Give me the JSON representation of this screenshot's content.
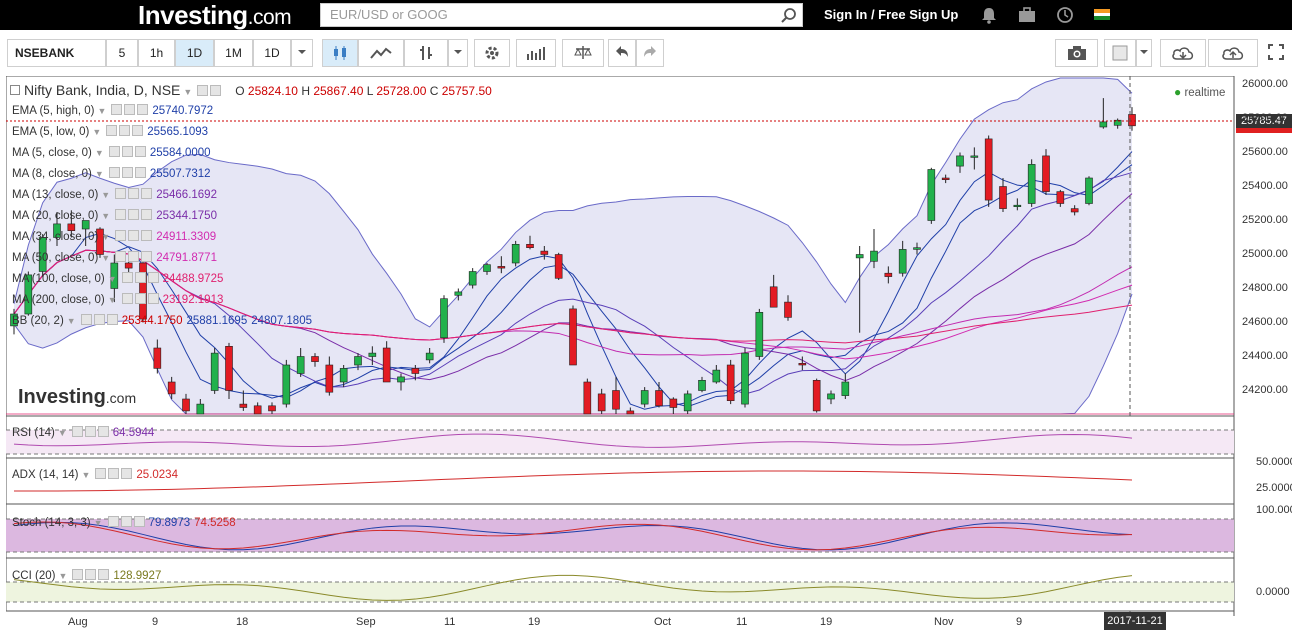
{
  "header": {
    "logo": "Investing",
    "logo_suffix": ".com",
    "search_placeholder": "EUR/USD or GOOG",
    "signin": "Sign In / Free Sign Up"
  },
  "toolbar": {
    "symbol": "NSEBANK",
    "intervals": [
      "5",
      "1h",
      "1D",
      "1M"
    ],
    "active_interval": "1D",
    "range": "1D"
  },
  "chart": {
    "title": "Nifty Bank, India, D, NSE",
    "ohlc": {
      "o_label": "O",
      "o": "25824.10",
      "h_label": "H",
      "h": "25867.40",
      "l_label": "L",
      "l": "25728.00",
      "c_label": "C",
      "c": "25757.50"
    },
    "realtime": "realtime",
    "price_tag": "25785.47",
    "date_tag": "2017-11-21",
    "watermark": "Investing",
    "watermark_suffix": ".com",
    "colors": {
      "up": "#22b14c",
      "down": "#e31b23",
      "bb_fill": "#e6e6f5",
      "bb_line": "#6a6ac8"
    }
  },
  "indicators": [
    {
      "label": "EMA (5, high, 0)",
      "value": "25740.7972",
      "color": "#1f3fa8"
    },
    {
      "label": "EMA (5, low, 0)",
      "value": "25565.1093",
      "color": "#1f3fa8"
    },
    {
      "label": "MA (5, close, 0)",
      "value": "25584.0000",
      "color": "#1f3fa8"
    },
    {
      "label": "MA (8, close, 0)",
      "value": "25507.7312",
      "color": "#1f3fa8"
    },
    {
      "label": "MA (13, close, 0)",
      "value": "25466.1692",
      "color": "#7a2da8"
    },
    {
      "label": "MA (20, close, 0)",
      "value": "25344.1750",
      "color": "#7a2da8"
    },
    {
      "label": "MA (34, close, 0)",
      "value": "24911.3309",
      "color": "#d22bb0"
    },
    {
      "label": "MA (50, close, 0)",
      "value": "24791.8771",
      "color": "#d22bb0"
    },
    {
      "label": "MA (100, close, 0)",
      "value": "24488.9725",
      "color": "#e0206e"
    },
    {
      "label": "MA (200, close, 0)",
      "value": "23192.1913",
      "color": "#e0206e"
    }
  ],
  "bb": {
    "label": "BB (20, 2)",
    "v1": "25344.1750",
    "v2": "25881.1695",
    "v3": "24807.1805"
  },
  "price_axis": [
    "26000.00",
    "25800.00",
    "25600.00",
    "25400.00",
    "25200.00",
    "25000.00",
    "24800.00",
    "24600.00",
    "24400.00",
    "24200.00"
  ],
  "date_axis": [
    "Aug",
    "9",
    "18",
    "Sep",
    "11",
    "19",
    "Oct",
    "11",
    "19",
    "Nov",
    "9"
  ],
  "rsi": {
    "label": "RSI (14)",
    "value": "64.5944",
    "axis": "50.0000"
  },
  "adx": {
    "label": "ADX (14, 14)",
    "value": "25.0234",
    "axis": "25.0000"
  },
  "stoch": {
    "label": "Stoch (14, 3, 3)",
    "v1": "79.8973",
    "v2": "74.5258",
    "axis": "100.0000"
  },
  "cci": {
    "label": "CCI (20)",
    "value": "128.9927",
    "axis": "0.0000"
  },
  "chart_data": {
    "type": "line",
    "title": "Nifty Bank, India, D, NSE",
    "candles": [
      [
        24580,
        24680,
        24530,
        24650
      ],
      [
        24650,
        24900,
        24640,
        24880
      ],
      [
        24900,
        25120,
        24870,
        25100
      ],
      [
        25100,
        25250,
        25050,
        25180
      ],
      [
        25180,
        25260,
        25100,
        25140
      ],
      [
        25150,
        25200,
        25050,
        25200
      ],
      [
        25150,
        25160,
        24980,
        25000
      ],
      [
        24800,
        25000,
        24720,
        24950
      ],
      [
        24950,
        25000,
        24880,
        24920
      ],
      [
        24950,
        24980,
        24600,
        24620
      ],
      [
        24450,
        24500,
        24300,
        24330
      ],
      [
        24250,
        24280,
        24150,
        24180
      ],
      [
        24150,
        24180,
        24050,
        24080
      ],
      [
        24040,
        24150,
        24020,
        24120
      ],
      [
        24200,
        24450,
        24180,
        24420
      ],
      [
        24460,
        24480,
        24150,
        24200
      ],
      [
        24120,
        24200,
        24080,
        24100
      ],
      [
        24110,
        24130,
        24050,
        24060
      ],
      [
        24110,
        24130,
        24050,
        24080
      ],
      [
        24120,
        24380,
        24100,
        24350
      ],
      [
        24300,
        24450,
        24280,
        24400
      ],
      [
        24400,
        24420,
        24340,
        24370
      ],
      [
        24350,
        24400,
        24170,
        24190
      ],
      [
        24250,
        24350,
        24220,
        24330
      ],
      [
        24350,
        24420,
        24320,
        24400
      ],
      [
        24400,
        24460,
        24350,
        24420
      ],
      [
        24450,
        24490,
        24250,
        24250
      ],
      [
        24250,
        24300,
        24200,
        24280
      ],
      [
        24330,
        24350,
        24260,
        24300
      ],
      [
        24380,
        24450,
        24360,
        24420
      ],
      [
        24510,
        24760,
        24480,
        24740
      ],
      [
        24760,
        24800,
        24730,
        24780
      ],
      [
        24820,
        24920,
        24800,
        24900
      ],
      [
        24900,
        24950,
        24880,
        24940
      ],
      [
        24930,
        24990,
        24890,
        24920
      ],
      [
        24950,
        25080,
        24930,
        25060
      ],
      [
        25060,
        25110,
        25030,
        25040
      ],
      [
        25020,
        25050,
        24970,
        25000
      ],
      [
        25000,
        25010,
        24850,
        24860
      ],
      [
        24680,
        24700,
        24350,
        24350
      ],
      [
        24250,
        24270,
        24010,
        24020
      ],
      [
        24180,
        24210,
        24040,
        24080
      ],
      [
        24200,
        24280,
        24060,
        24090
      ],
      [
        24080,
        24100,
        24040,
        24060
      ],
      [
        24120,
        24220,
        24100,
        24200
      ],
      [
        24200,
        24250,
        24100,
        24110
      ],
      [
        24150,
        24160,
        24020,
        24100
      ],
      [
        24080,
        24200,
        24060,
        24180
      ],
      [
        24200,
        24280,
        24190,
        24260
      ],
      [
        24250,
        24350,
        24240,
        24320
      ],
      [
        24350,
        24380,
        24120,
        24140
      ],
      [
        24120,
        24450,
        24100,
        24420
      ],
      [
        24400,
        24680,
        24380,
        24660
      ],
      [
        24810,
        24880,
        24690,
        24690
      ],
      [
        24720,
        24760,
        24610,
        24630
      ],
      [
        24360,
        24400,
        24320,
        24350
      ],
      [
        24260,
        24270,
        24070,
        24080
      ],
      [
        24150,
        24200,
        24120,
        24180
      ],
      [
        24170,
        24300,
        24150,
        24250
      ],
      [
        24980,
        25050,
        24540,
        25000
      ],
      [
        24960,
        25150,
        24920,
        25020
      ],
      [
        24890,
        24930,
        24830,
        24870
      ],
      [
        24890,
        25080,
        24870,
        25030
      ],
      [
        25030,
        25070,
        25000,
        25040
      ],
      [
        25200,
        25510,
        25180,
        25500
      ],
      [
        25450,
        25470,
        25420,
        25440
      ],
      [
        25520,
        25600,
        25480,
        25580
      ],
      [
        25580,
        25630,
        25500,
        25580
      ],
      [
        25680,
        25700,
        25280,
        25320
      ],
      [
        25400,
        25450,
        25250,
        25270
      ],
      [
        25290,
        25330,
        25260,
        25290
      ],
      [
        25300,
        25560,
        25280,
        25530
      ],
      [
        25580,
        25620,
        25350,
        25370
      ],
      [
        25370,
        25380,
        25280,
        25300
      ],
      [
        25270,
        25290,
        25230,
        25250
      ],
      [
        25300,
        25460,
        25290,
        25450
      ],
      [
        25750,
        25920,
        25740,
        25780
      ],
      [
        25760,
        25800,
        25740,
        25790
      ],
      [
        25824,
        25867,
        25728,
        25757
      ]
    ]
  }
}
